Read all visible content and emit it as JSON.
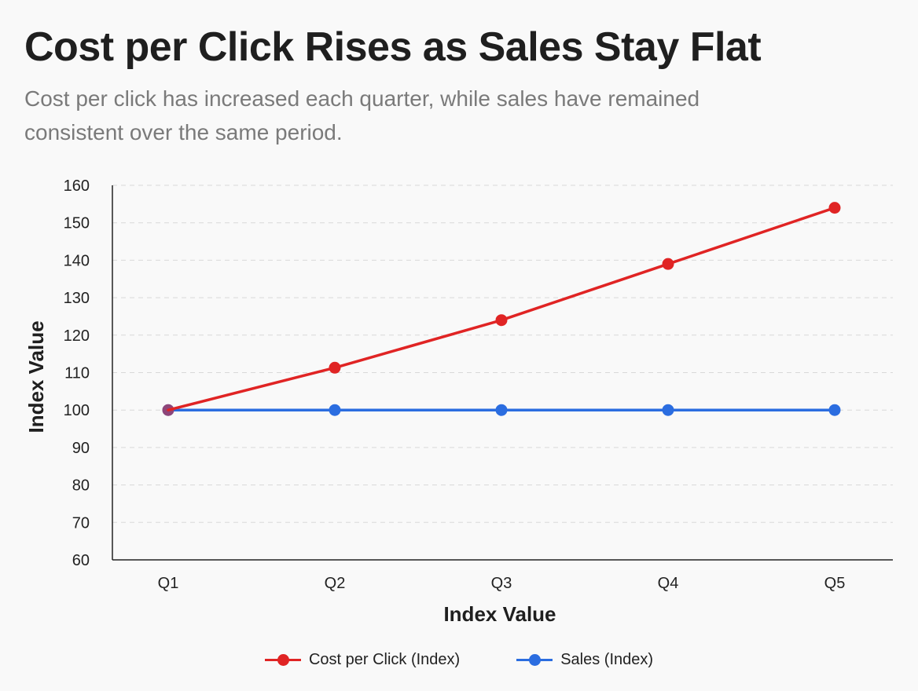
{
  "chart_data": {
    "type": "line",
    "title": "Cost per Click Rises as Sales Stay Flat",
    "subtitle": "Cost per click has increased each quarter, while sales have remained consistent over the same period.",
    "xlabel": "Index Value",
    "ylabel": "Index Value",
    "categories": [
      "Q1",
      "Q2",
      "Q3",
      "Q4",
      "Q5"
    ],
    "ylim": [
      60,
      160
    ],
    "yticks": [
      60,
      70,
      80,
      90,
      100,
      110,
      120,
      130,
      140,
      150,
      160
    ],
    "grid": true,
    "legend_position": "bottom-center",
    "series": [
      {
        "name": "Cost per Click (Index)",
        "color": "#e02424",
        "values": [
          100,
          111.3,
          124,
          139,
          154
        ]
      },
      {
        "name": "Sales (Index)",
        "color": "#2b6de0",
        "values": [
          100,
          100,
          100,
          100,
          100
        ]
      }
    ]
  }
}
